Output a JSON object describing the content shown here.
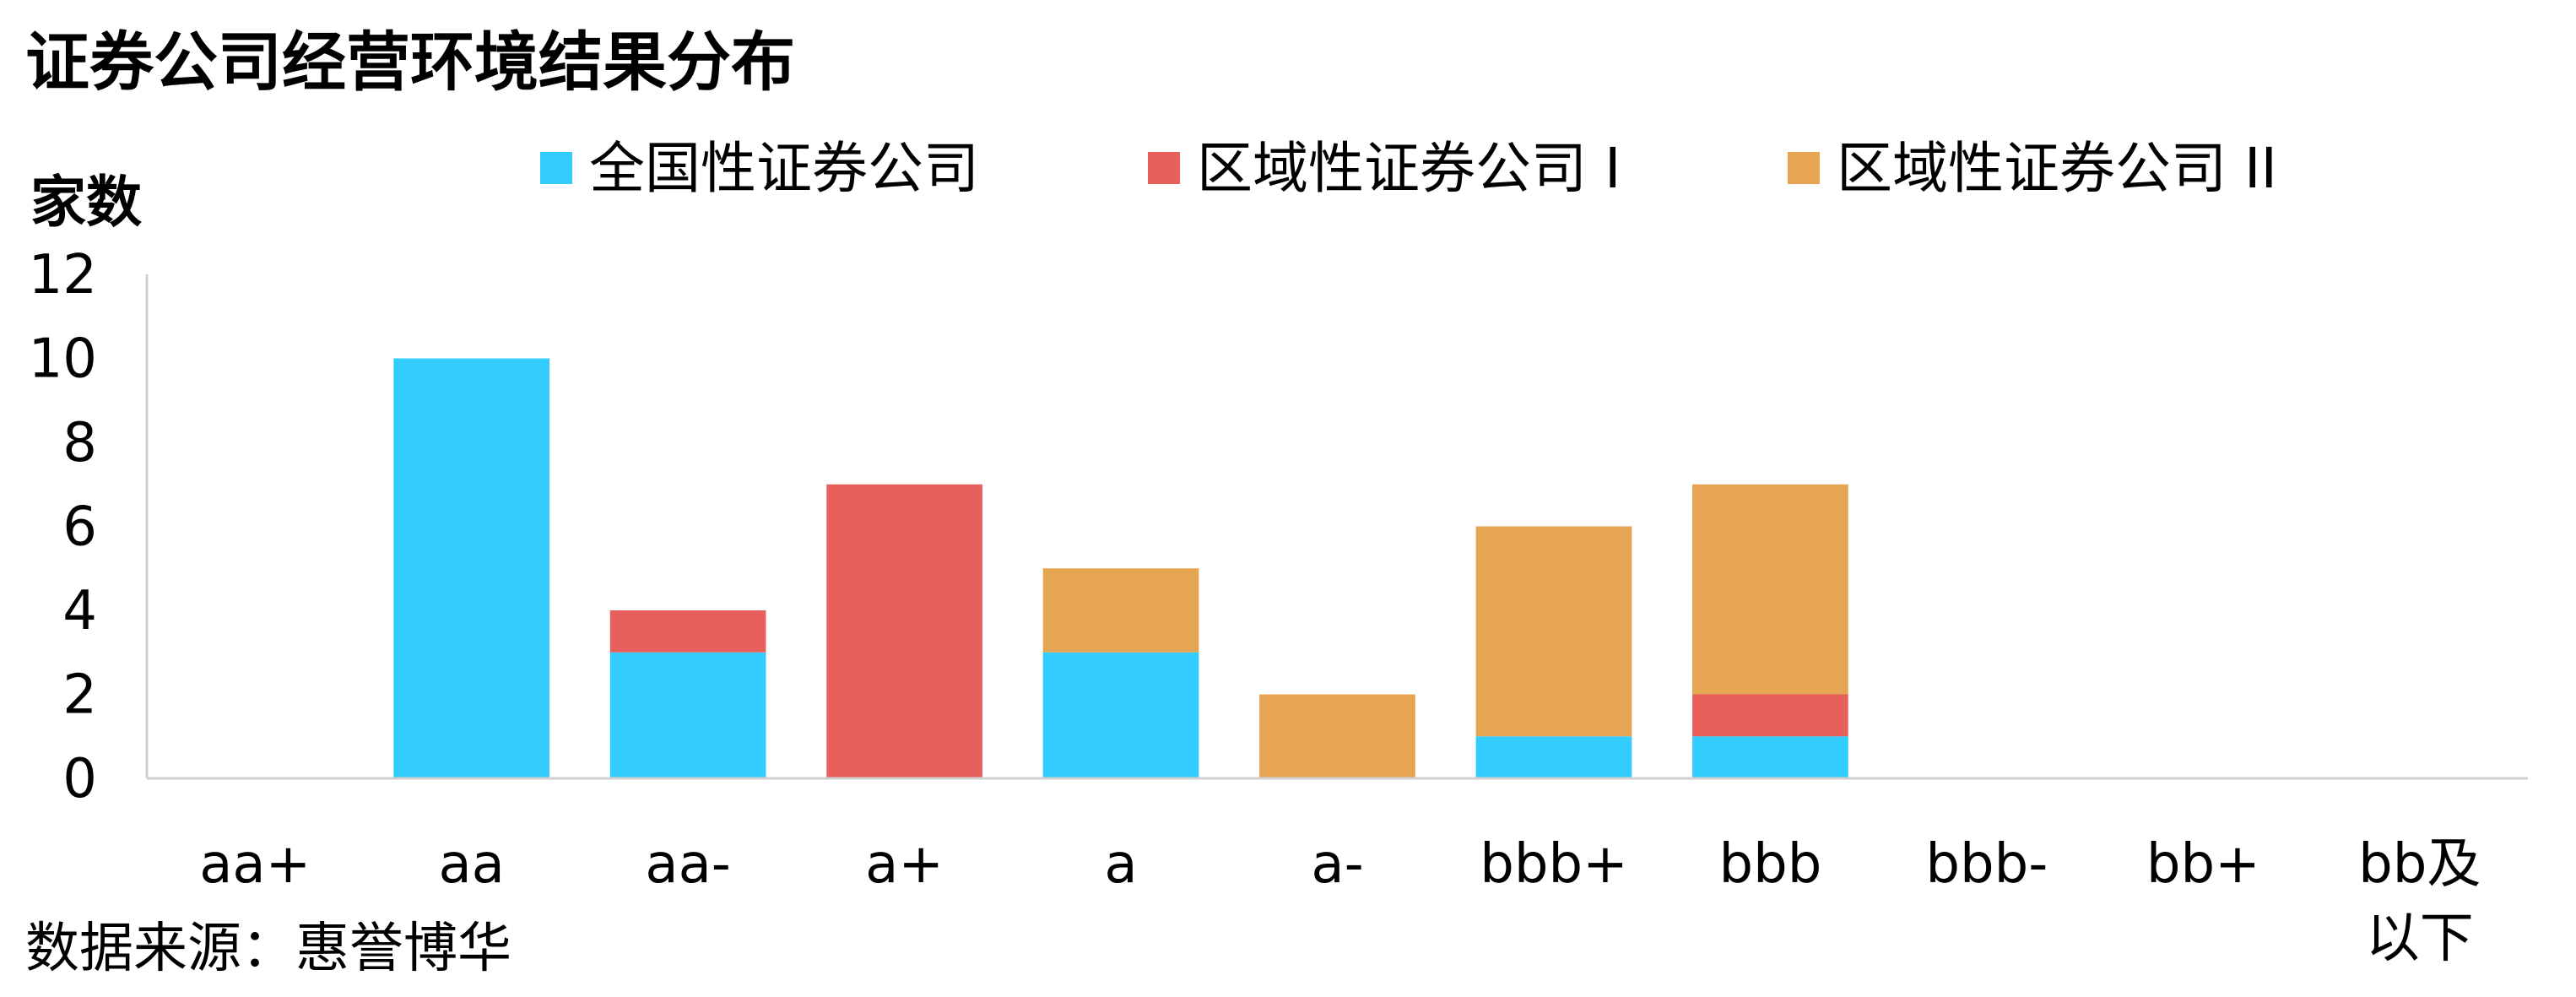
{
  "chart_data": {
    "type": "bar",
    "stacked": true,
    "title": "证券公司经营环境结果分布",
    "ylabel": "家数",
    "xlabel": "",
    "ylim": [
      0,
      12
    ],
    "yticks": [
      0,
      2,
      4,
      6,
      8,
      10,
      12
    ],
    "grid": false,
    "legend_position": "top",
    "categories": [
      "aa+",
      "aa",
      "aa-",
      "a+",
      "a",
      "a-",
      "bbb+",
      "bbb",
      "bbb-",
      "bb+",
      "bb及以下"
    ],
    "series": [
      {
        "name": "全国性证券公司",
        "color": "#33CCFF",
        "values": [
          0,
          10,
          3,
          0,
          3,
          0,
          1,
          1,
          0,
          0,
          0
        ]
      },
      {
        "name": "区域性证券公司 I",
        "color": "#E8605C",
        "values": [
          0,
          0,
          1,
          7,
          0,
          0,
          0,
          1,
          0,
          0,
          0
        ]
      },
      {
        "name": "区域性证券公司 II",
        "color": "#E5A552",
        "values": [
          0,
          0,
          0,
          0,
          2,
          2,
          5,
          5,
          0,
          0,
          0
        ]
      }
    ],
    "source": "数据来源：惠誉博华"
  }
}
